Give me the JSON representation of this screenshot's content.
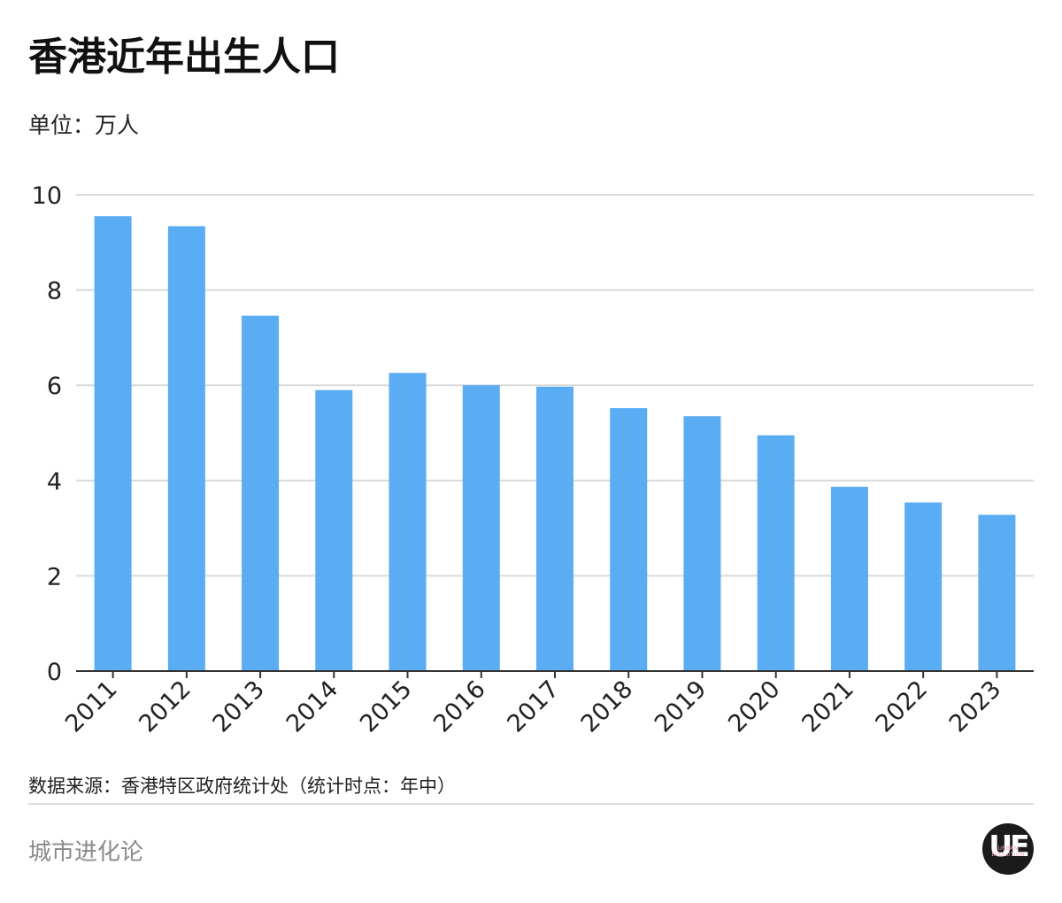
{
  "header": {
    "title": "香港近年出生人口",
    "unit": "单位：万人"
  },
  "footer": {
    "source": "数据来源：香港特区政府统计处（统计时点：年中）",
    "brand": "城市进化论",
    "logo_letters": "UE",
    "logo_caption": "URBAN EVOLUTION"
  },
  "colors": {
    "bar": "#5aacf3",
    "grid": "#d9d9d9",
    "axis": "#333333",
    "title": "#111111",
    "brand": "#8a8a8a"
  },
  "chart_data": {
    "type": "bar",
    "title": "香港近年出生人口",
    "xlabel": "",
    "ylabel": "单位：万人",
    "categories": [
      "2011",
      "2012",
      "2013",
      "2014",
      "2015",
      "2016",
      "2017",
      "2018",
      "2019",
      "2020",
      "2021",
      "2022",
      "2023"
    ],
    "values": [
      9.55,
      9.34,
      7.46,
      5.9,
      6.26,
      6.0,
      5.97,
      5.52,
      5.35,
      4.95,
      3.87,
      3.54,
      3.28
    ],
    "ylim": [
      0,
      10
    ],
    "yticks": [
      0,
      2,
      4,
      6,
      8,
      10
    ],
    "grid": true,
    "legend": "none"
  }
}
